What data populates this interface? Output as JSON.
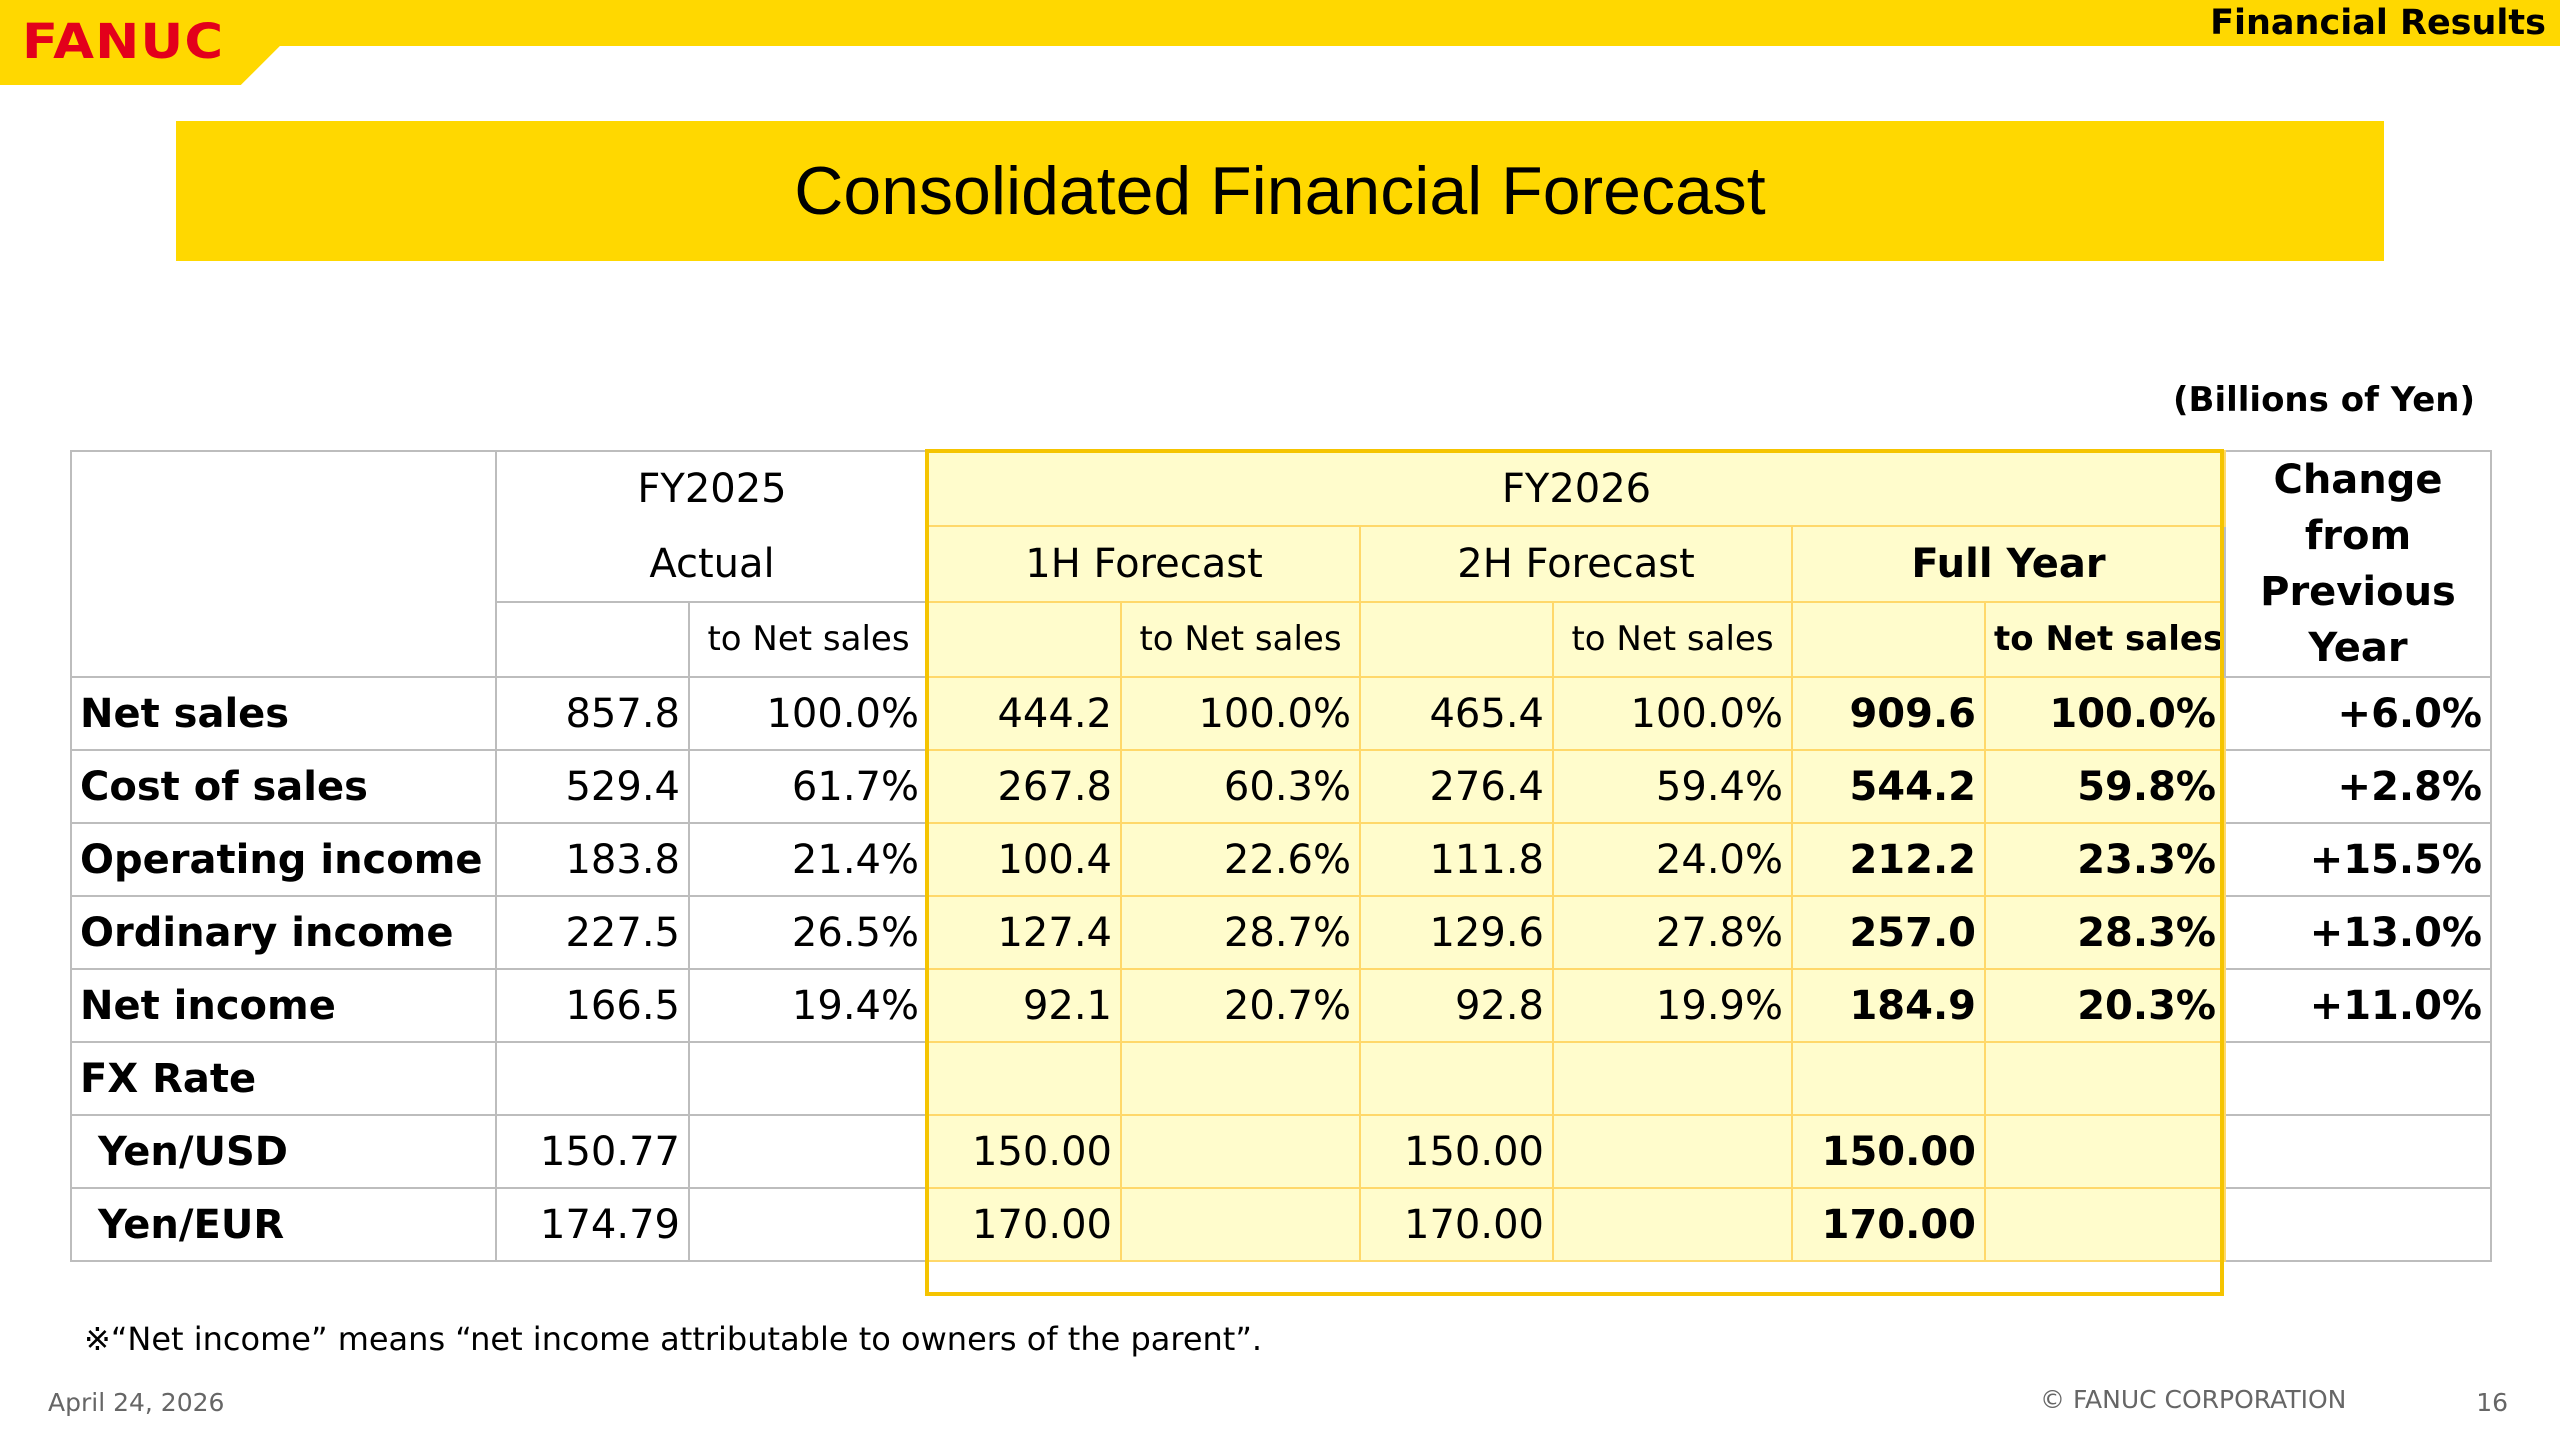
{
  "header": {
    "logo": "FANUC",
    "section": "Financial Results",
    "title": "Consolidated Financial Forecast",
    "units": "(Billions of Yen)"
  },
  "table": {
    "fy2025": "FY2025",
    "actual": "Actual",
    "fy2026": "FY2026",
    "h1": "1H Forecast",
    "h2": "2H Forecast",
    "full": "Full Year",
    "to_net_sales": "to Net sales",
    "change": [
      "Change",
      "from",
      "Previous",
      "Year"
    ],
    "rows": [
      {
        "label": "Net sales",
        "a": "857.8",
        "ap": "100.0%",
        "h1": "444.2",
        "h1p": "100.0%",
        "h2": "465.4",
        "h2p": "100.0%",
        "fy": "909.6",
        "fyp": "100.0%",
        "chg": "+6.0%"
      },
      {
        "label": "Cost of sales",
        "a": "529.4",
        "ap": "61.7%",
        "h1": "267.8",
        "h1p": "60.3%",
        "h2": "276.4",
        "h2p": "59.4%",
        "fy": "544.2",
        "fyp": "59.8%",
        "chg": "+2.8%"
      },
      {
        "label": "Operating income",
        "a": "183.8",
        "ap": "21.4%",
        "h1": "100.4",
        "h1p": "22.6%",
        "h2": "111.8",
        "h2p": "24.0%",
        "fy": "212.2",
        "fyp": "23.3%",
        "chg": "+15.5%"
      },
      {
        "label": "Ordinary income",
        "a": "227.5",
        "ap": "26.5%",
        "h1": "127.4",
        "h1p": "28.7%",
        "h2": "129.6",
        "h2p": "27.8%",
        "fy": "257.0",
        "fyp": "28.3%",
        "chg": "+13.0%"
      },
      {
        "label": "Net income",
        "a": "166.5",
        "ap": "19.4%",
        "h1": "92.1",
        "h1p": "20.7%",
        "h2": "92.8",
        "h2p": "19.9%",
        "fy": "184.9",
        "fyp": "20.3%",
        "chg": "+11.0%"
      }
    ],
    "fx": {
      "label": "FX Rate",
      "rows": [
        {
          "label": "Yen/USD",
          "a": "150.77",
          "h1": "150.00",
          "h2": "150.00",
          "fy": "150.00"
        },
        {
          "label": "Yen/EUR",
          "a": "174.79",
          "h1": "170.00",
          "h2": "170.00",
          "fy": "170.00"
        }
      ]
    }
  },
  "note": "※“Net income” means “net income attributable to owners of the parent”.",
  "footer": {
    "date": "April 24, 2026",
    "copyright": "© FANUC CORPORATION",
    "page": "16"
  },
  "colors": {
    "brand_yellow": "#FFD800",
    "brand_red": "#E3001B",
    "forecast_fill": "#FFFCCC"
  }
}
